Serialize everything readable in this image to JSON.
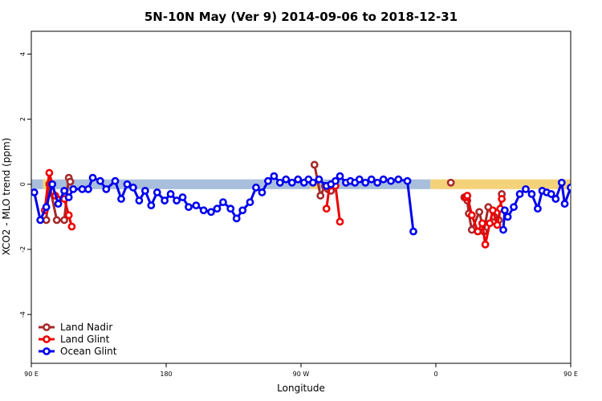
{
  "chart_data": {
    "type": "line",
    "title": "5N-10N May (Ver 9)   2014-09-06 to 2018-12-31",
    "xlabel": "Longitude",
    "ylabel": "XCO2 - MLO trend (ppm)",
    "xlim": [
      90,
      450
    ],
    "ylim": [
      -5.5,
      4.7
    ],
    "xticks": [
      {
        "value": 90,
        "label": "90 E"
      },
      {
        "value": 180,
        "label": "180"
      },
      {
        "value": 270,
        "label": "90 W"
      },
      {
        "value": 360,
        "label": "0"
      },
      {
        "value": 450,
        "label": "90 E"
      },
      {
        "value": 540,
        "label": "180"
      }
    ],
    "yticks": [
      -4,
      -2,
      0,
      2,
      4
    ],
    "legend_position": "bottom-left",
    "background_band": {
      "y_range": [
        -0.15,
        0.15
      ],
      "segments": [
        {
          "x0": 90,
          "x1": 97.7,
          "color": "#a8bedc"
        },
        {
          "x0": 97.7,
          "x1": 101.8,
          "color": "#f4d27a"
        },
        {
          "x0": 101.8,
          "x1": 276.1,
          "color": "#a8bedc"
        },
        {
          "x0": 276.1,
          "x1": 281.7,
          "color": "#f4d27a"
        },
        {
          "x0": 281.7,
          "x1": 356.4,
          "color": "#a8bedc"
        },
        {
          "x0": 356.4,
          "x1": 455.0,
          "color": "#f4d27a"
        },
        {
          "x0": 455.0,
          "x1": 461.3,
          "color": "#a8bedc"
        },
        {
          "x0": 461.3,
          "x1": 460.0,
          "color": "#a8bedc"
        },
        {
          "x0": 460.0,
          "x1": 540,
          "color": "#a8bedc"
        }
      ]
    },
    "series": [
      {
        "name": "Land Nadir",
        "color": "#a52a2a",
        "segments": [
          [
            [
              100,
              -1.1
            ],
            [
              102,
              0.0
            ],
            [
              107,
              -1.1
            ],
            [
              112,
              -1.1
            ],
            [
              115,
              0.2
            ],
            [
              116,
              0.08
            ]
          ],
          [
            [
              279,
              0.6
            ],
            [
              283,
              -0.35
            ],
            [
              286,
              -0.05
            ],
            [
              288,
              -0.15
            ],
            [
              290,
              -0.2
            ]
          ],
          [
            [
              370,
              0.05
            ]
          ],
          [
            [
              379,
              -0.4
            ],
            [
              381,
              -0.5
            ],
            [
              382,
              -0.9
            ],
            [
              384,
              -1.4
            ],
            [
              389,
              -0.85
            ],
            [
              392,
              -1.45
            ],
            [
              395,
              -0.7
            ],
            [
              399,
              -1.0
            ],
            [
              402,
              -1.1
            ],
            [
              404,
              -0.3
            ]
          ],
          [
            [
              469,
              -0.7
            ],
            [
              472,
              -1.1
            ],
            [
              479,
              -1.1
            ],
            [
              484,
              -0.8
            ],
            [
              490,
              -1.1
            ],
            [
              492,
              0.2
            ],
            [
              494,
              0.1
            ]
          ]
        ]
      },
      {
        "name": "Land Glint",
        "color": "#ee0000",
        "segments": [
          [
            [
              99,
              -0.8
            ],
            [
              102,
              0.35
            ],
            [
              106,
              -0.35
            ],
            [
              112,
              -0.45
            ],
            [
              115,
              -0.95
            ],
            [
              117,
              -1.3
            ]
          ],
          [
            [
              287,
              -0.75
            ],
            [
              289,
              -0.05
            ],
            [
              293,
              -0.05
            ],
            [
              296,
              -1.15
            ]
          ],
          [
            [
              380,
              -0.4
            ],
            [
              381,
              -0.35
            ],
            [
              384,
              -0.95
            ],
            [
              388,
              -1.45
            ],
            [
              391,
              -1.2
            ],
            [
              393,
              -1.85
            ],
            [
              396,
              -1.2
            ],
            [
              398,
              -0.8
            ],
            [
              401,
              -1.25
            ],
            [
              403,
              -0.75
            ],
            [
              404,
              -0.45
            ]
          ],
          [
            [
              469,
              0.05
            ],
            [
              470,
              -0.7
            ],
            [
              474,
              -0.8
            ],
            [
              476,
              0.35
            ],
            [
              487,
              -0.55
            ],
            [
              489,
              -0.95
            ],
            [
              491,
              -1.25
            ]
          ]
        ]
      },
      {
        "name": "Ocean Glint",
        "color": "#0000ee",
        "segments": [
          [
            [
              92,
              -0.25
            ],
            [
              96,
              -1.1
            ],
            [
              100,
              -0.7
            ],
            [
              104,
              0.0
            ],
            [
              108,
              -0.6
            ],
            [
              112,
              -0.2
            ],
            [
              115,
              -0.4
            ],
            [
              118,
              -0.15
            ],
            [
              124,
              -0.15
            ],
            [
              128,
              -0.15
            ],
            [
              131,
              0.2
            ],
            [
              136,
              0.1
            ],
            [
              140,
              -0.15
            ],
            [
              146,
              0.1
            ],
            [
              150,
              -0.45
            ],
            [
              154,
              0.0
            ],
            [
              158,
              -0.1
            ],
            [
              162,
              -0.5
            ],
            [
              166,
              -0.2
            ],
            [
              170,
              -0.65
            ],
            [
              174,
              -0.25
            ],
            [
              179,
              -0.5
            ],
            [
              183,
              -0.3
            ],
            [
              187,
              -0.5
            ],
            [
              191,
              -0.4
            ],
            [
              195,
              -0.7
            ],
            [
              200,
              -0.65
            ],
            [
              205,
              -0.8
            ],
            [
              210,
              -0.85
            ],
            [
              214,
              -0.75
            ],
            [
              218,
              -0.55
            ],
            [
              223,
              -0.75
            ],
            [
              227,
              -1.05
            ],
            [
              231,
              -0.8
            ],
            [
              236,
              -0.55
            ],
            [
              240,
              -0.1
            ],
            [
              244,
              -0.25
            ],
            [
              248,
              0.1
            ],
            [
              252,
              0.25
            ],
            [
              256,
              0.05
            ],
            [
              260,
              0.15
            ],
            [
              264,
              0.05
            ],
            [
              268,
              0.15
            ],
            [
              272,
              0.05
            ],
            [
              275,
              0.15
            ],
            [
              278,
              0.05
            ],
            [
              282,
              0.15
            ],
            [
              287,
              -0.05
            ],
            [
              290,
              0.0
            ],
            [
              293,
              0.1
            ],
            [
              296,
              0.25
            ],
            [
              300,
              0.05
            ],
            [
              303,
              0.1
            ],
            [
              306,
              0.05
            ],
            [
              309,
              0.15
            ],
            [
              313,
              0.05
            ],
            [
              317,
              0.15
            ],
            [
              321,
              0.05
            ],
            [
              325,
              0.15
            ],
            [
              330,
              0.1
            ],
            [
              335,
              0.15
            ],
            [
              341,
              0.1
            ],
            [
              345,
              -1.45
            ]
          ],
          [
            [
              405,
              -1.4
            ],
            [
              406,
              -0.8
            ],
            [
              408,
              -1.0
            ],
            [
              412,
              -0.7
            ],
            [
              416,
              -0.3
            ],
            [
              420,
              -0.15
            ],
            [
              424,
              -0.3
            ],
            [
              428,
              -0.75
            ],
            [
              431,
              -0.2
            ],
            [
              434,
              -0.25
            ],
            [
              437,
              -0.3
            ],
            [
              440,
              -0.45
            ],
            [
              444,
              0.05
            ],
            [
              446,
              -0.6
            ],
            [
              450,
              -0.1
            ],
            [
              454,
              -0.45
            ],
            [
              458,
              -0.15
            ],
            [
              462,
              -0.15
            ],
            [
              466,
              -0.2
            ],
            [
              470,
              0.2
            ],
            [
              474,
              0.1
            ],
            [
              478,
              -0.2
            ],
            [
              482,
              0.0
            ],
            [
              486,
              0.1
            ],
            [
              490,
              -0.45
            ],
            [
              494,
              0.0
            ],
            [
              497,
              -0.1
            ]
          ]
        ]
      }
    ]
  }
}
